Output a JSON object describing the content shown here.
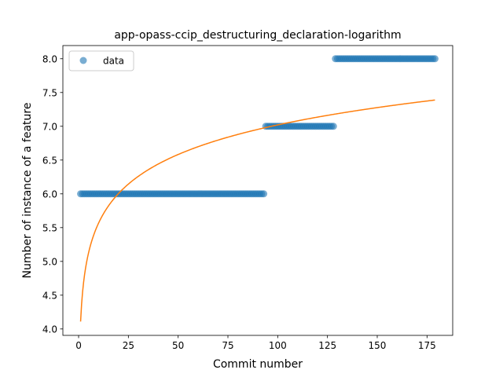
{
  "chart_data": {
    "type": "scatter",
    "title": "app-opass-ccip_destructuring_declaration-logarithm",
    "xlabel": "Commit number",
    "ylabel": "Number of instance of a feature",
    "xlim": [
      -7.9,
      187.9
    ],
    "ylim": [
      3.905,
      8.195
    ],
    "xticks": [
      0,
      25,
      50,
      75,
      100,
      125,
      150,
      175
    ],
    "yticks": [
      4.0,
      4.5,
      5.0,
      5.5,
      6.0,
      6.5,
      7.0,
      7.5,
      8.0
    ],
    "grid": false,
    "legend": {
      "location": "upper left",
      "entries": [
        "data"
      ]
    },
    "colors": {
      "data": "#1f77b4",
      "fit": "#ff7f0e"
    },
    "series": [
      {
        "name": "data",
        "kind": "scatter",
        "segments": [
          {
            "x_start": 1,
            "x_end": 93,
            "y": 6.0
          },
          {
            "x_start": 94,
            "x_end": 128,
            "y": 7.0
          },
          {
            "x_start": 129,
            "x_end": 179,
            "y": 8.0
          }
        ]
      },
      {
        "kind": "line",
        "model": "logarithmic",
        "a": 0.632,
        "b": 4.11,
        "x_range": [
          1,
          179
        ]
      }
    ]
  }
}
